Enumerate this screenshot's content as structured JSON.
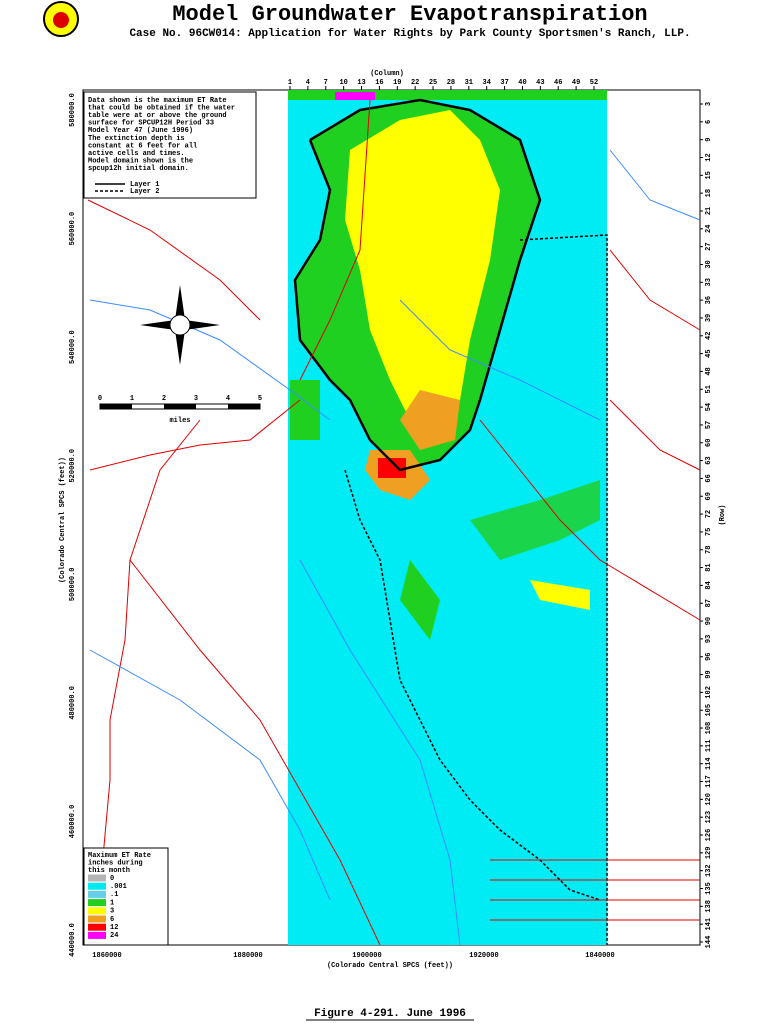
{
  "header": {
    "title": "Model Groundwater Evapotranspiration",
    "subtitle": "Case No. 96CW014: Application for Water Rights by Park County Sportsmen's Ranch, LLP."
  },
  "note": {
    "lines": [
      "Data shown is the maximum ET Rate",
      "that could be obtained if the water",
      "table were at or above the ground",
      "surface for SPCUP12H Period 33",
      "Model Year 47 (June 1996)",
      "The extinction depth is",
      "constant at 6 feet for all",
      "active cells and times.",
      "Model domain shown is the",
      "spcup12h initial domain."
    ],
    "layers": [
      "Layer 1",
      "Layer 2"
    ]
  },
  "column_axis": {
    "title": "(Column)",
    "ticks": [
      "1",
      "4",
      "7",
      "10",
      "13",
      "16",
      "19",
      "22",
      "25",
      "28",
      "31",
      "34",
      "37",
      "40",
      "43",
      "46",
      "49",
      "52"
    ]
  },
  "row_axis": {
    "title": "(Row)",
    "ticks": [
      "3",
      "6",
      "9",
      "12",
      "15",
      "18",
      "21",
      "24",
      "27",
      "30",
      "33",
      "36",
      "39",
      "42",
      "45",
      "48",
      "51",
      "54",
      "57",
      "60",
      "63",
      "66",
      "69",
      "72",
      "75",
      "78",
      "81",
      "84",
      "87",
      "90",
      "93",
      "96",
      "99",
      "102",
      "105",
      "108",
      "111",
      "114",
      "117",
      "120",
      "123",
      "126",
      "129",
      "132",
      "135",
      "138",
      "141",
      "144"
    ]
  },
  "x_axis": {
    "title": "(Colorado Central SPCS (feet))",
    "ticks": [
      "1860000",
      "1880000",
      "1900000",
      "1920000",
      "1840000"
    ]
  },
  "y_axis": {
    "title": "(Colorado Central SPCS (feet))",
    "ticks": [
      "580000.0",
      "560000.0",
      "540000.0",
      "520000.0",
      "500000.0",
      "480000.0",
      "460000.0",
      "440000.0"
    ]
  },
  "scale_bar": {
    "ticks": [
      "0",
      "1",
      "2",
      "3",
      "4",
      "5"
    ],
    "unit": "miles"
  },
  "legend": {
    "title_lines": [
      "Maximum ET Rate",
      "inches during",
      "this month"
    ],
    "entries": [
      {
        "label": "0",
        "color": "#b4b4b4"
      },
      {
        "label": ".001",
        "color": "#00e8f0"
      },
      {
        "label": ".1",
        "color": "#66d0e8"
      },
      {
        "label": "1",
        "color": "#20d020"
      },
      {
        "label": "3",
        "color": "#ffff00"
      },
      {
        "label": "6",
        "color": "#f0a020"
      },
      {
        "label": "12",
        "color": "#ff0000"
      },
      {
        "label": "24",
        "color": "#ff00ff"
      }
    ]
  },
  "caption": "Figure 4-291.  June 1996"
}
